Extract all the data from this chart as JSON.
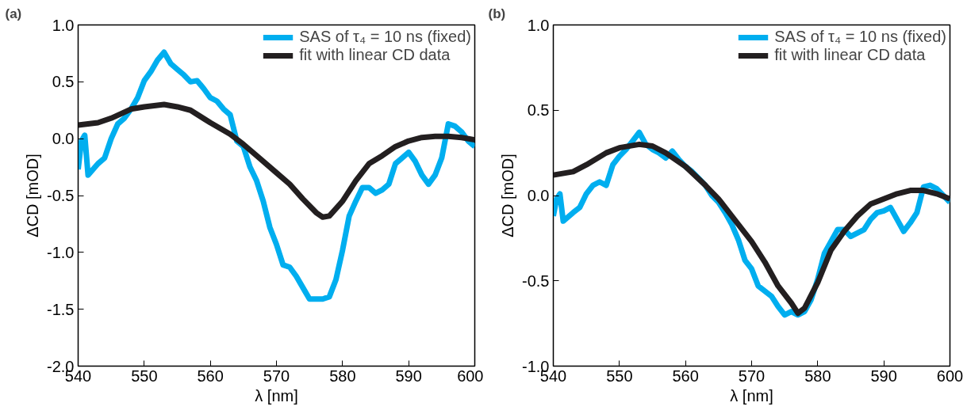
{
  "chart_data": [
    {
      "type": "line",
      "title": "(a)",
      "xlabel": "λ [nm]",
      "ylabel": "ΔCD [mOD]",
      "legend": "top right",
      "xlim": [
        540,
        600
      ],
      "xticks": [
        540,
        550,
        560,
        570,
        580,
        590,
        600
      ],
      "ylim": [
        -2,
        1
      ],
      "yticks": [
        {
          "value": -2,
          "label": "-2.0"
        },
        {
          "value": -1.5,
          "label": "-1.5"
        },
        {
          "value": -1,
          "label": "-1.0"
        },
        {
          "value": -0.5,
          "label": "-0.5"
        },
        {
          "value": 0,
          "label": "0.0"
        },
        {
          "value": 0.5,
          "label": "0.5"
        },
        {
          "value": 1,
          "label": "1.0"
        }
      ],
      "series": [
        {
          "name": "SAS of τ₄ = 10 ns (fixed)",
          "color": "#00aeef",
          "x": [
            540,
            540.5,
            541,
            541.5,
            543,
            544,
            545,
            546,
            547,
            548,
            549,
            550,
            551,
            552,
            553,
            554,
            555,
            556,
            557,
            558,
            559,
            560,
            561,
            562,
            563,
            564,
            565,
            566,
            567,
            568,
            569,
            570,
            571,
            572,
            573,
            574,
            575,
            576,
            577,
            578,
            579,
            580,
            581,
            582,
            583,
            584,
            585,
            586,
            587,
            588,
            589,
            590,
            591,
            592,
            593,
            594,
            595,
            596,
            597,
            598,
            599,
            600
          ],
          "values": [
            -0.27,
            -0.02,
            0.03,
            -0.32,
            -0.22,
            -0.17,
            0,
            0.13,
            0.18,
            0.26,
            0.36,
            0.51,
            0.59,
            0.69,
            0.76,
            0.66,
            0.61,
            0.56,
            0.5,
            0.51,
            0.44,
            0.36,
            0.33,
            0.26,
            0.21,
            -0.02,
            -0.07,
            -0.25,
            -0.37,
            -0.55,
            -0.78,
            -0.93,
            -1.11,
            -1.13,
            -1.21,
            -1.31,
            -1.41,
            -1.41,
            -1.41,
            -1.39,
            -1.24,
            -0.98,
            -0.68,
            -0.55,
            -0.43,
            -0.43,
            -0.48,
            -0.45,
            -0.4,
            -0.22,
            -0.17,
            -0.12,
            -0.2,
            -0.32,
            -0.4,
            -0.32,
            -0.17,
            0.13,
            0.11,
            0.06,
            -0.02,
            -0.07
          ]
        },
        {
          "name": "fit with linear CD data",
          "color": "#231f20",
          "x": [
            540,
            543,
            545,
            548,
            550,
            553,
            555,
            557,
            560,
            563,
            565,
            567,
            570,
            572,
            574,
            576,
            577,
            578,
            580,
            582,
            584,
            586,
            588,
            590,
            592,
            594,
            596,
            598,
            600
          ],
          "values": [
            0.12,
            0.14,
            0.18,
            0.26,
            0.28,
            0.3,
            0.28,
            0.25,
            0.14,
            0.04,
            -0.05,
            -0.15,
            -0.3,
            -0.4,
            -0.53,
            -0.65,
            -0.69,
            -0.68,
            -0.55,
            -0.37,
            -0.22,
            -0.15,
            -0.07,
            -0.02,
            0.01,
            0.02,
            0.02,
            0.01,
            -0.01
          ]
        }
      ]
    },
    {
      "type": "line",
      "title": "(b)",
      "xlabel": "λ [nm]",
      "ylabel": "ΔCD [mOD]",
      "legend": "top right",
      "xlim": [
        540,
        600
      ],
      "xticks": [
        540,
        550,
        560,
        570,
        580,
        590,
        600
      ],
      "ylim": [
        -1,
        1
      ],
      "yticks": [
        {
          "value": -1,
          "label": "-1.0"
        },
        {
          "value": -0.5,
          "label": "-0.5"
        },
        {
          "value": 0,
          "label": "0.0"
        },
        {
          "value": 0.5,
          "label": "0.5"
        },
        {
          "value": 1,
          "label": "1.0"
        }
      ],
      "series": [
        {
          "name": "SAS of τ₄ = 10 ns (fixed)",
          "color": "#00aeef",
          "x": [
            540,
            540.5,
            541,
            541.5,
            543,
            544,
            545,
            546,
            547,
            548,
            549,
            550,
            551,
            552,
            553,
            554,
            555,
            556,
            557,
            558,
            559,
            560,
            561,
            562,
            563,
            564,
            565,
            566,
            567,
            568,
            569,
            570,
            571,
            572,
            573,
            574,
            575,
            576,
            577,
            578,
            579,
            580,
            581,
            582,
            583,
            584,
            585,
            586,
            587,
            588,
            589,
            590,
            591,
            592,
            593,
            594,
            595,
            596,
            597,
            598,
            599,
            600
          ],
          "values": [
            -0.12,
            -0.02,
            0.01,
            -0.15,
            -0.1,
            -0.07,
            0.01,
            0.06,
            0.08,
            0.06,
            0.18,
            0.23,
            0.27,
            0.32,
            0.37,
            0.3,
            0.27,
            0.25,
            0.22,
            0.26,
            0.21,
            0.17,
            0.14,
            0.1,
            0.06,
            0,
            -0.04,
            -0.1,
            -0.17,
            -0.26,
            -0.38,
            -0.43,
            -0.53,
            -0.56,
            -0.59,
            -0.65,
            -0.7,
            -0.68,
            -0.7,
            -0.68,
            -0.61,
            -0.49,
            -0.34,
            -0.27,
            -0.2,
            -0.2,
            -0.24,
            -0.22,
            -0.2,
            -0.14,
            -0.1,
            -0.09,
            -0.07,
            -0.14,
            -0.21,
            -0.16,
            -0.1,
            0.05,
            0.06,
            0.04,
            0,
            -0.04
          ]
        },
        {
          "name": "fit with linear CD data",
          "color": "#231f20",
          "x": [
            540,
            543,
            545,
            548,
            550,
            553,
            555,
            557,
            560,
            563,
            565,
            567,
            570,
            572,
            574,
            576,
            577,
            578,
            580,
            582,
            584,
            586,
            588,
            590,
            592,
            594,
            596,
            598,
            600
          ],
          "values": [
            0.12,
            0.14,
            0.18,
            0.25,
            0.28,
            0.3,
            0.29,
            0.25,
            0.17,
            0.06,
            -0.02,
            -0.12,
            -0.27,
            -0.39,
            -0.53,
            -0.63,
            -0.69,
            -0.66,
            -0.51,
            -0.32,
            -0.21,
            -0.12,
            -0.05,
            -0.02,
            0.01,
            0.03,
            0.03,
            0.01,
            -0.02
          ]
        }
      ]
    }
  ]
}
